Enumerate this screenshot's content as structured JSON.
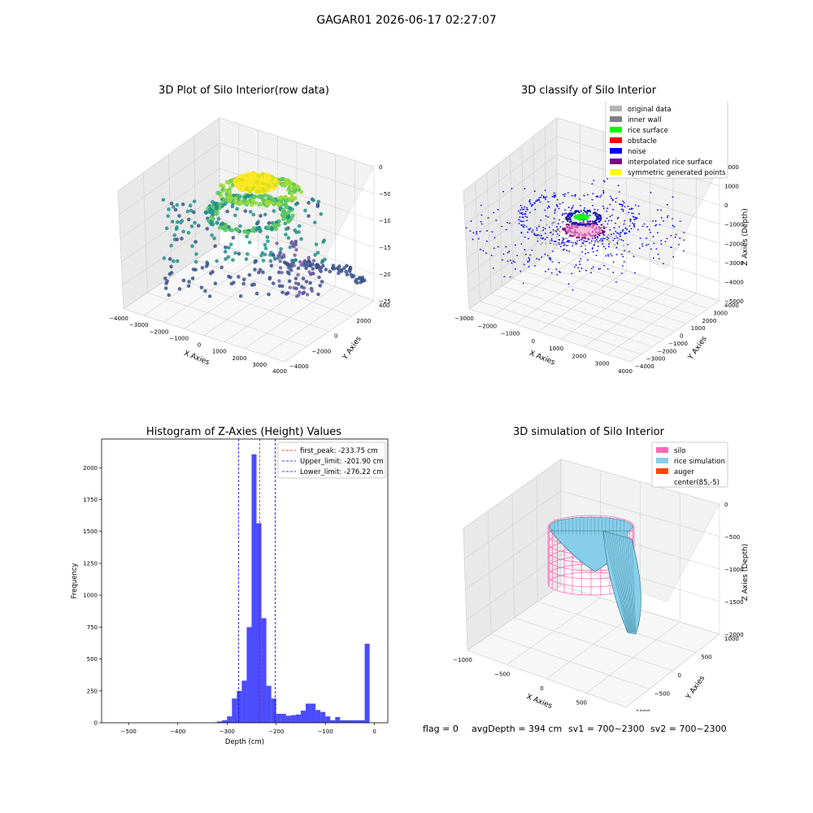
{
  "figure": {
    "title": "GAGAR01 2026-06-17 02:27:07"
  },
  "footer": {
    "flag": "flag = 0",
    "avg": "avgDepth = 394 cm",
    "sv1": "sv1 = 700~2300",
    "sv2": "sv2 = 700~2300"
  },
  "chart_data": [
    {
      "type": "scatter",
      "title": "3D Plot of Silo Interior(row data)",
      "xlabel": "X Axies",
      "ylabel": "Y Axies",
      "zlabel": "Z Axies (Depth)",
      "xticks": [
        "−4000",
        "−3000",
        "−2000",
        "−1000",
        "0",
        "1000",
        "2000",
        "3000",
        "4000"
      ],
      "yticks": [
        "−4000",
        "−2000",
        "0",
        "2000",
        "4000"
      ],
      "zticks": [
        "0",
        "−500",
        "−1000",
        "−1500",
        "−2000",
        "−2500"
      ],
      "colormap": [
        "#440154",
        "#3b528b",
        "#21908c",
        "#5dc963",
        "#fde725"
      ]
    },
    {
      "type": "scatter",
      "title": "3D classify of Silo Interior",
      "xlabel": "X Axies",
      "ylabel": "Y Axies",
      "zlabel": "Z Axies (Depth)",
      "xticks": [
        "−3000",
        "−2000",
        "−1000",
        "0",
        "1000",
        "2000",
        "3000",
        "4000"
      ],
      "yticks": [
        "−4000",
        "−3000",
        "−2000",
        "−1000",
        "0",
        "1000",
        "2000",
        "3000",
        "4000"
      ],
      "zticks": [
        "2000",
        "1000",
        "0",
        "−1000",
        "−2000",
        "−3000",
        "−4000",
        "−5000"
      ],
      "legend_position": "top-right",
      "legend": [
        {
          "label": "original data",
          "color": "#b3b3b3"
        },
        {
          "label": "inner wall",
          "color": "#808080"
        },
        {
          "label": "rice surface",
          "color": "#00ff00"
        },
        {
          "label": "obstacle",
          "color": "#ff0000"
        },
        {
          "label": "noise",
          "color": "#0000ff"
        },
        {
          "label": "interpolated rice surface",
          "color": "#800080"
        },
        {
          "label": "symmetric generated points",
          "color": "#ffff00"
        }
      ]
    },
    {
      "type": "bar",
      "title": "Histogram of Z-Axies (Height) Values",
      "xlabel": "Depth (cm)",
      "ylabel": "Frequency",
      "xlim": [
        -555,
        27
      ],
      "ylim": [
        0,
        2225
      ],
      "xticks": [
        -500,
        -400,
        -300,
        -200,
        -100,
        0
      ],
      "xtick_labels": [
        "−500",
        "−400",
        "−300",
        "−200",
        "−100",
        "0"
      ],
      "yticks": [
        0,
        250,
        500,
        750,
        1000,
        1250,
        1500,
        1750,
        2000
      ],
      "bar_color": "#0000ff",
      "bins": [
        {
          "x0": -330,
          "x1": -320,
          "value": 3
        },
        {
          "x0": -320,
          "x1": -310,
          "value": 10
        },
        {
          "x0": -310,
          "x1": -300,
          "value": 20
        },
        {
          "x0": -300,
          "x1": -290,
          "value": 50
        },
        {
          "x0": -290,
          "x1": -280,
          "value": 190
        },
        {
          "x0": -280,
          "x1": -270,
          "value": 250
        },
        {
          "x0": -270,
          "x1": -260,
          "value": 330
        },
        {
          "x0": -260,
          "x1": -250,
          "value": 750
        },
        {
          "x0": -250,
          "x1": -240,
          "value": 2105
        },
        {
          "x0": -240,
          "x1": -230,
          "value": 1565
        },
        {
          "x0": -230,
          "x1": -220,
          "value": 820
        },
        {
          "x0": -220,
          "x1": -210,
          "value": 290
        },
        {
          "x0": -210,
          "x1": -200,
          "value": 190
        },
        {
          "x0": -200,
          "x1": -190,
          "value": 70
        },
        {
          "x0": -190,
          "x1": -180,
          "value": 70
        },
        {
          "x0": -180,
          "x1": -170,
          "value": 55
        },
        {
          "x0": -170,
          "x1": -160,
          "value": 60
        },
        {
          "x0": -160,
          "x1": -150,
          "value": 65
        },
        {
          "x0": -150,
          "x1": -140,
          "value": 95
        },
        {
          "x0": -140,
          "x1": -130,
          "value": 150
        },
        {
          "x0": -130,
          "x1": -120,
          "value": 150
        },
        {
          "x0": -120,
          "x1": -110,
          "value": 100
        },
        {
          "x0": -110,
          "x1": -100,
          "value": 85
        },
        {
          "x0": -100,
          "x1": -90,
          "value": 50
        },
        {
          "x0": -90,
          "x1": -80,
          "value": 20
        },
        {
          "x0": -80,
          "x1": -70,
          "value": 45
        },
        {
          "x0": -70,
          "x1": -60,
          "value": 20
        },
        {
          "x0": -60,
          "x1": -50,
          "value": 20
        },
        {
          "x0": -50,
          "x1": -40,
          "value": 20
        },
        {
          "x0": -40,
          "x1": -30,
          "value": 20
        },
        {
          "x0": -30,
          "x1": -20,
          "value": 20
        },
        {
          "x0": -20,
          "x1": -10,
          "value": 620
        }
      ],
      "vlines": [
        {
          "x": -233.75,
          "color": "#ff0000",
          "label": "first_peak: -233.75 cm"
        },
        {
          "x": -201.9,
          "color": "#0000ff",
          "label": "Upper_limit: -201.90 cm"
        },
        {
          "x": -276.22,
          "color": "#0000ff",
          "label": "Lower_limit: -276.22 cm"
        }
      ],
      "legend_position": "top-right"
    },
    {
      "type": "surface",
      "title": "3D simulation of Silo Interior",
      "xlabel": "X Axies",
      "ylabel": "Y Axies",
      "zlabel": "Z Axies (Depth)",
      "xticks": [
        "−1000",
        "−500",
        "0",
        "500",
        "1000"
      ],
      "yticks": [
        "−1000",
        "−500",
        "0",
        "500",
        "1000"
      ],
      "zticks": [
        "0",
        "−500",
        "−1000",
        "−1500",
        "−2000"
      ],
      "legend_position": "top-right",
      "legend": [
        {
          "label": "silo",
          "color": "#ff69b4"
        },
        {
          "label": "rice simulation",
          "color": "#87ceeb"
        },
        {
          "label": "auger",
          "color": "#ff4500"
        },
        {
          "label": "center(85,-5)",
          "color": ""
        }
      ]
    }
  ]
}
